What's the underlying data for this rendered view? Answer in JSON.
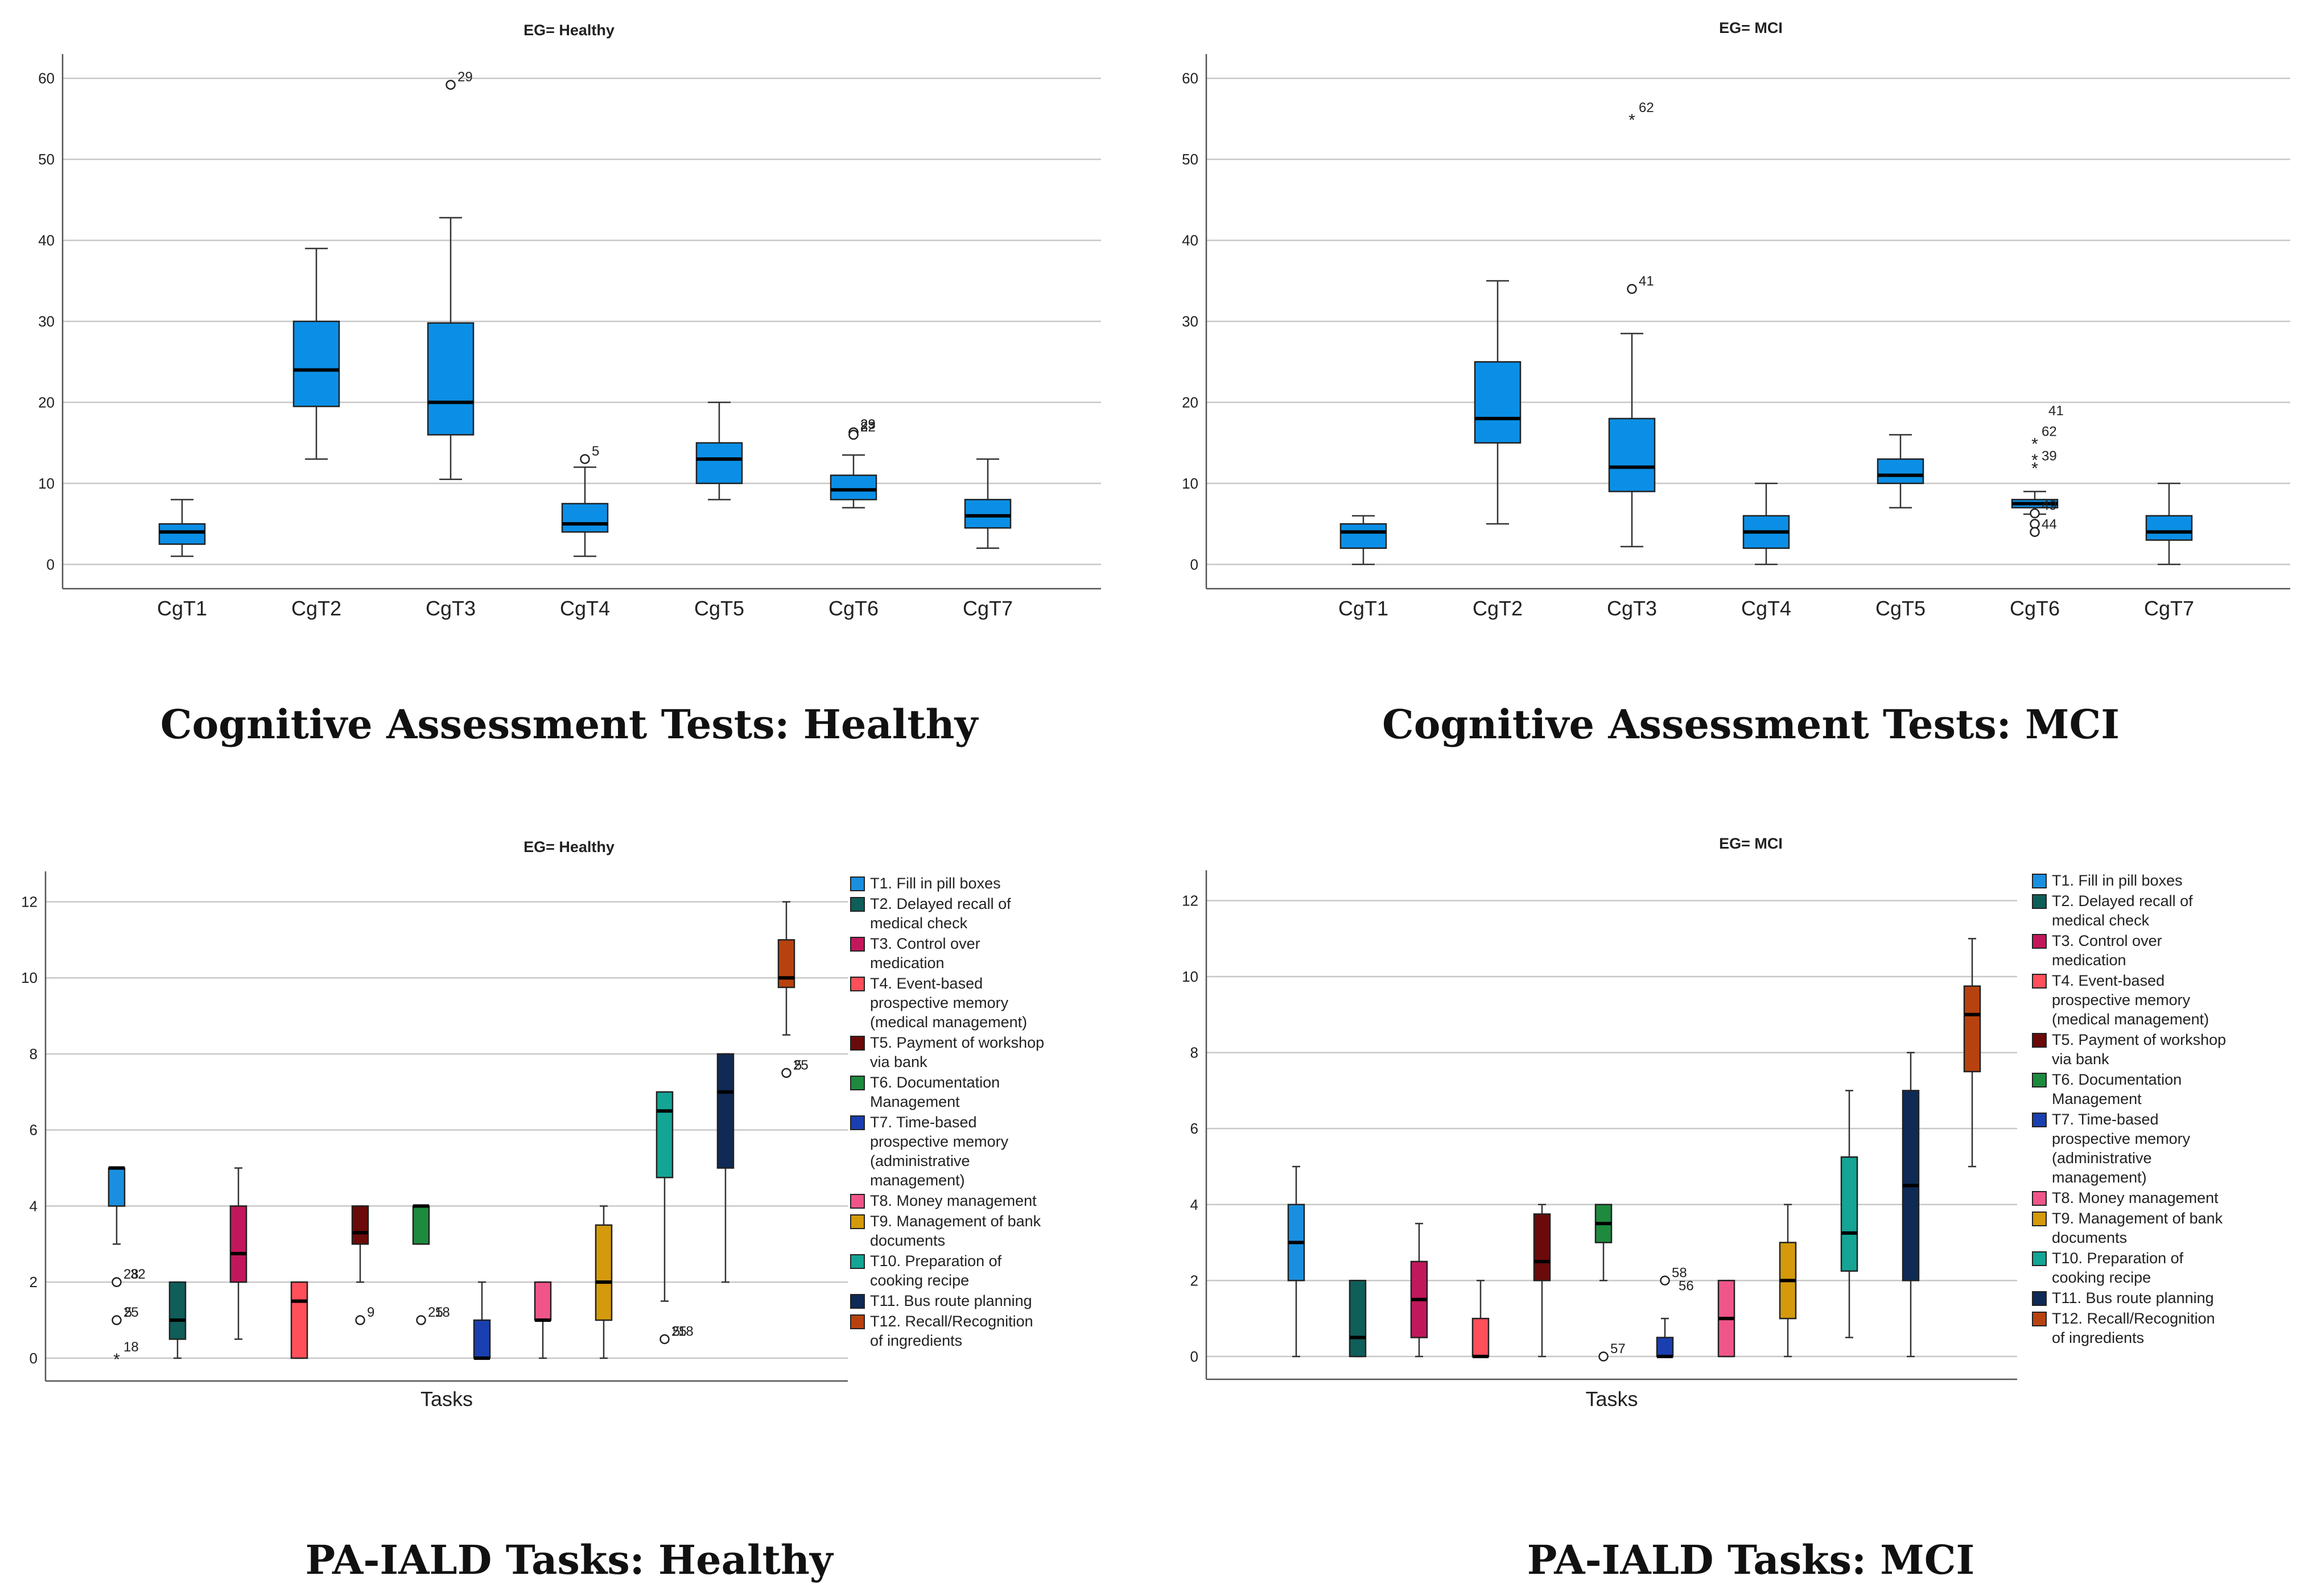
{
  "chart_data": [
    {
      "id": "cog_healthy",
      "type": "boxplot",
      "title": "EG= Healthy",
      "caption": "Cognitive Assessment Tests: Healthy",
      "ylim": [
        -3,
        63
      ],
      "yticks": [
        0,
        10,
        20,
        30,
        40,
        50,
        60
      ],
      "grid": true,
      "categories": [
        "CgT1",
        "CgT2",
        "CgT3",
        "CgT4",
        "CgT5",
        "CgT6",
        "CgT7"
      ],
      "boxes": [
        {
          "label": "CgT1",
          "min": 1,
          "q1": 2.5,
          "median": 4,
          "q3": 5,
          "max": 8,
          "color": "#0b8fe6",
          "outliers": []
        },
        {
          "label": "CgT2",
          "min": 13,
          "q1": 19.5,
          "median": 24,
          "q3": 30,
          "max": 39,
          "color": "#0b8fe6",
          "outliers": []
        },
        {
          "label": "CgT3",
          "min": 10.5,
          "q1": 16,
          "median": 20,
          "q3": 29.8,
          "max": 42.8,
          "color": "#0b8fe6",
          "outliers": [
            {
              "value": 59.2,
              "kind": "circle",
              "label": "29"
            }
          ]
        },
        {
          "label": "CgT4",
          "min": 1,
          "q1": 4,
          "median": 5,
          "q3": 7.5,
          "max": 12,
          "color": "#0b8fe6",
          "outliers": [
            {
              "value": 13,
              "kind": "circle",
              "label": "5"
            }
          ]
        },
        {
          "label": "CgT5",
          "min": 8,
          "q1": 10,
          "median": 13,
          "q3": 15,
          "max": 20,
          "color": "#0b8fe6",
          "outliers": []
        },
        {
          "label": "CgT6",
          "min": 7,
          "q1": 8,
          "median": 9.2,
          "q3": 11,
          "max": 13.5,
          "color": "#0b8fe6",
          "outliers": [
            {
              "value": 16.3,
              "kind": "circle",
              "label": "29"
            },
            {
              "value": 16.3,
              "kind": "circle",
              "label": "23"
            },
            {
              "value": 16,
              "kind": "circle",
              "label": "8"
            },
            {
              "value": 16,
              "kind": "circle",
              "label": "22"
            }
          ]
        },
        {
          "label": "CgT7",
          "min": 2,
          "q1": 4.5,
          "median": 6,
          "q3": 8,
          "max": 13,
          "color": "#0b8fe6",
          "outliers": []
        }
      ]
    },
    {
      "id": "cog_mci",
      "type": "boxplot",
      "title": "EG= MCI",
      "caption": "Cognitive Assessment Tests: MCI",
      "ylim": [
        -3,
        63
      ],
      "yticks": [
        0,
        10,
        20,
        30,
        40,
        50,
        60
      ],
      "grid": true,
      "categories": [
        "CgT1",
        "CgT2",
        "CgT3",
        "CgT4",
        "CgT5",
        "CgT6",
        "CgT7"
      ],
      "boxes": [
        {
          "label": "CgT1",
          "min": 0,
          "q1": 2,
          "median": 4,
          "q3": 5,
          "max": 6,
          "color": "#0b8fe6",
          "outliers": []
        },
        {
          "label": "CgT2",
          "min": 5,
          "q1": 15,
          "median": 18,
          "q3": 25,
          "max": 35,
          "color": "#0b8fe6",
          "outliers": []
        },
        {
          "label": "CgT3",
          "min": 2.2,
          "q1": 9,
          "median": 12,
          "q3": 18,
          "max": 28.5,
          "color": "#0b8fe6",
          "outliers": [
            {
              "value": 34,
              "kind": "circle",
              "label": "41"
            },
            {
              "value": 55,
              "kind": "star",
              "label": "62"
            }
          ]
        },
        {
          "label": "CgT4",
          "min": 0,
          "q1": 2,
          "median": 4,
          "q3": 6,
          "max": 10,
          "color": "#0b8fe6",
          "outliers": []
        },
        {
          "label": "CgT5",
          "min": 7,
          "q1": 10,
          "median": 11,
          "q3": 13,
          "max": 16,
          "color": "#0b8fe6",
          "outliers": []
        },
        {
          "label": "CgT6",
          "min": 6.2,
          "q1": 7,
          "median": 7.5,
          "q3": 8,
          "max": 9,
          "color": "#0b8fe6",
          "outliers": [
            {
              "value": 18,
              "kind": "text",
              "label": "41"
            },
            {
              "value": 15,
              "kind": "star",
              "label": "62"
            },
            {
              "value": 13,
              "kind": "star",
              "label": ""
            },
            {
              "value": 12,
              "kind": "star",
              "label": "39"
            },
            {
              "value": 6.3,
              "kind": "circle",
              "label": "49"
            },
            {
              "value": 5,
              "kind": "circle",
              "label": ""
            },
            {
              "value": 4,
              "kind": "circle",
              "label": "44"
            }
          ]
        },
        {
          "label": "CgT7",
          "min": 0,
          "q1": 3,
          "median": 4,
          "q3": 6,
          "max": 10,
          "color": "#0b8fe6",
          "outliers": []
        }
      ]
    },
    {
      "id": "tasks_healthy",
      "type": "boxplot",
      "title": "EG= Healthy",
      "caption": "PA-IALD Tasks: Healthy",
      "xlabel": "Tasks",
      "ylim": [
        -0.6,
        12.8
      ],
      "yticks": [
        0,
        2,
        4,
        6,
        8,
        10,
        12
      ],
      "grid": true,
      "legend": [
        "T1. Fill in pill boxes",
        "T2. Delayed recall of medical check",
        "T3. Control over medication",
        "T4. Event-based prospective memory (medical management)",
        "T5. Payment of workshop via bank",
        "T6. Documentation Management",
        "T7. Time-based prospective memory (administrative management)",
        "T8. Money management",
        "T9. Management of bank documents",
        "T10. Preparation of cooking recipe",
        "T11. Bus route planning",
        "T12. Recall/Recognition of ingredients"
      ],
      "boxes": [
        {
          "label": "T1",
          "min": 3,
          "q1": 4,
          "median": 5,
          "q3": 5,
          "max": 5,
          "color": "#1a8fe0",
          "outliers": [
            {
              "value": 2,
              "kind": "circle",
              "label": "28"
            },
            {
              "value": 2,
              "kind": "text",
              "label": "32"
            },
            {
              "value": 1,
              "kind": "circle",
              "label": "25"
            },
            {
              "value": 1,
              "kind": "text",
              "label": "5"
            },
            {
              "value": 0,
              "kind": "star",
              "label": "18"
            }
          ]
        },
        {
          "label": "T2",
          "min": 0,
          "q1": 0.5,
          "median": 1,
          "q3": 2,
          "max": 2,
          "color": "#0f5e5a",
          "outliers": []
        },
        {
          "label": "T3",
          "min": 0.5,
          "q1": 2,
          "median": 2.75,
          "q3": 4,
          "max": 5,
          "color": "#c2185b",
          "outliers": []
        },
        {
          "label": "T4",
          "min": 0,
          "q1": 0,
          "median": 1.5,
          "q3": 2,
          "max": 2,
          "color": "#ff4f5a",
          "outliers": []
        },
        {
          "label": "T5",
          "min": 2,
          "q1": 3,
          "median": 3.3,
          "q3": 4,
          "max": 4,
          "color": "#6b0a0a",
          "outliers": [
            {
              "value": 1,
              "kind": "circle",
              "label": "9"
            }
          ]
        },
        {
          "label": "T6",
          "min": 3,
          "q1": 3,
          "median": 4,
          "q3": 4,
          "max": 4,
          "color": "#1e8a3e",
          "outliers": [
            {
              "value": 1,
              "kind": "circle",
              "label": "25"
            },
            {
              "value": 1,
              "kind": "text",
              "label": "18"
            }
          ]
        },
        {
          "label": "T7",
          "min": 0,
          "q1": 0,
          "median": 0,
          "q3": 1,
          "max": 2,
          "color": "#1a3fb0",
          "outliers": []
        },
        {
          "label": "T8",
          "min": 0,
          "q1": 1,
          "median": 1,
          "q3": 2,
          "max": 2,
          "color": "#f0558a",
          "outliers": []
        },
        {
          "label": "T9",
          "min": 0,
          "q1": 1,
          "median": 2,
          "q3": 3.5,
          "max": 4,
          "color": "#d49a0c",
          "outliers": []
        },
        {
          "label": "T10",
          "min": 1.5,
          "q1": 4.75,
          "median": 6.5,
          "q3": 7,
          "max": 7,
          "color": "#14a595",
          "outliers": [
            {
              "value": 0.5,
              "kind": "circle",
              "label": "25"
            },
            {
              "value": 0.5,
              "kind": "text",
              "label": "5"
            },
            {
              "value": 0.5,
              "kind": "text",
              "label": "18"
            }
          ]
        },
        {
          "label": "T11",
          "min": 2,
          "q1": 5,
          "median": 7,
          "q3": 8,
          "max": 8,
          "color": "#0e2a55",
          "outliers": []
        },
        {
          "label": "T12",
          "min": 8.5,
          "q1": 9.75,
          "median": 10,
          "q3": 11,
          "max": 12,
          "color": "#b8420f",
          "outliers": [
            {
              "value": 7.5,
              "kind": "circle",
              "label": "25"
            },
            {
              "value": 7.5,
              "kind": "text",
              "label": "5"
            }
          ]
        }
      ]
    },
    {
      "id": "tasks_mci",
      "type": "boxplot",
      "title": "EG= MCI",
      "caption": "PA-IALD Tasks: MCI",
      "xlabel": "Tasks",
      "ylim": [
        -0.6,
        12.8
      ],
      "yticks": [
        0,
        2,
        4,
        6,
        8,
        10,
        12
      ],
      "grid": true,
      "legend": [
        "T1. Fill in pill boxes",
        "T2. Delayed recall of medical check",
        "T3. Control over medication",
        "T4. Event-based prospective memory (medical management)",
        "T5. Payment of workshop via bank",
        "T6. Documentation Management",
        "T7. Time-based prospective memory (administrative management)",
        "T8. Money management",
        "T9. Management of bank documents",
        "T10. Preparation of cooking recipe",
        "T11. Bus route planning",
        "T12. Recall/Recognition of ingredients"
      ],
      "boxes": [
        {
          "label": "T1",
          "min": 0,
          "q1": 2,
          "median": 3,
          "q3": 4,
          "max": 5,
          "color": "#1a8fe0",
          "outliers": []
        },
        {
          "label": "T2",
          "min": 0,
          "q1": 0,
          "median": 0.5,
          "q3": 2,
          "max": 2,
          "color": "#0f5e5a",
          "outliers": []
        },
        {
          "label": "T3",
          "min": 0,
          "q1": 0.5,
          "median": 1.5,
          "q3": 2.5,
          "max": 3.5,
          "color": "#c2185b",
          "outliers": []
        },
        {
          "label": "T4",
          "min": 0,
          "q1": 0,
          "median": 0,
          "q3": 1,
          "max": 2,
          "color": "#ff4f5a",
          "outliers": []
        },
        {
          "label": "T5",
          "min": 0,
          "q1": 2,
          "median": 2.5,
          "q3": 3.75,
          "max": 4,
          "color": "#6b0a0a",
          "outliers": []
        },
        {
          "label": "T6",
          "min": 2,
          "q1": 3,
          "median": 3.5,
          "q3": 4,
          "max": 4,
          "color": "#1e8a3e",
          "outliers": [
            {
              "value": 0,
              "kind": "circle",
              "label": "57"
            }
          ]
        },
        {
          "label": "T7",
          "min": 0,
          "q1": 0,
          "median": 0,
          "q3": 0.5,
          "max": 1,
          "color": "#1a3fb0",
          "outliers": [
            {
              "value": 2,
              "kind": "circle",
              "label": "58"
            },
            {
              "value": 1.65,
              "kind": "text",
              "label": "56"
            }
          ]
        },
        {
          "label": "T8",
          "min": 0,
          "q1": 0,
          "median": 1,
          "q3": 2,
          "max": 2,
          "color": "#f0558a",
          "outliers": []
        },
        {
          "label": "T9",
          "min": 0,
          "q1": 1,
          "median": 2,
          "q3": 3,
          "max": 4,
          "color": "#d49a0c",
          "outliers": []
        },
        {
          "label": "T10",
          "min": 0.5,
          "q1": 2.25,
          "median": 3.25,
          "q3": 5.25,
          "max": 7,
          "color": "#14a595",
          "outliers": []
        },
        {
          "label": "T11",
          "min": 0,
          "q1": 2,
          "median": 4.5,
          "q3": 7,
          "max": 8,
          "color": "#0e2a55",
          "outliers": []
        },
        {
          "label": "T12",
          "min": 5,
          "q1": 7.5,
          "median": 9,
          "q3": 9.75,
          "max": 11,
          "color": "#b8420f",
          "outliers": []
        }
      ]
    }
  ]
}
